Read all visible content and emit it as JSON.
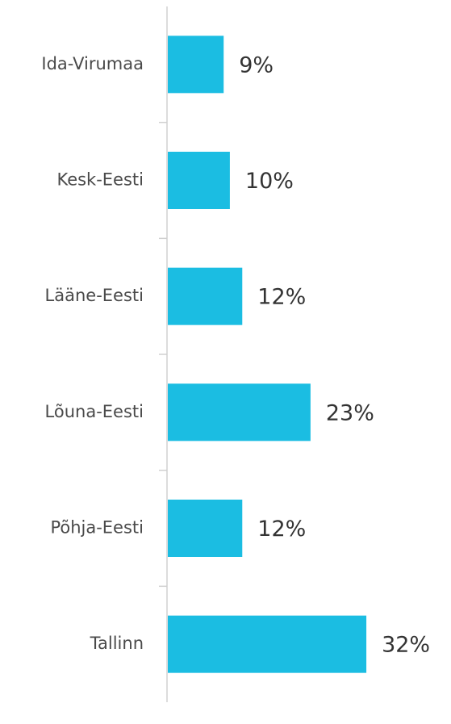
{
  "chart_data": {
    "type": "bar",
    "orientation": "horizontal",
    "categories": [
      "Ida-Virumaa",
      "Kesk-Eesti",
      "Lääne-Eesti",
      "Lõuna-Eesti",
      "Põhja-Eesti",
      "Tallinn"
    ],
    "values": [
      9,
      10,
      12,
      23,
      12,
      32
    ],
    "value_labels": [
      "9%",
      "10%",
      "12%",
      "23%",
      "12%",
      "32%"
    ],
    "color": "#1bbde2"
  }
}
